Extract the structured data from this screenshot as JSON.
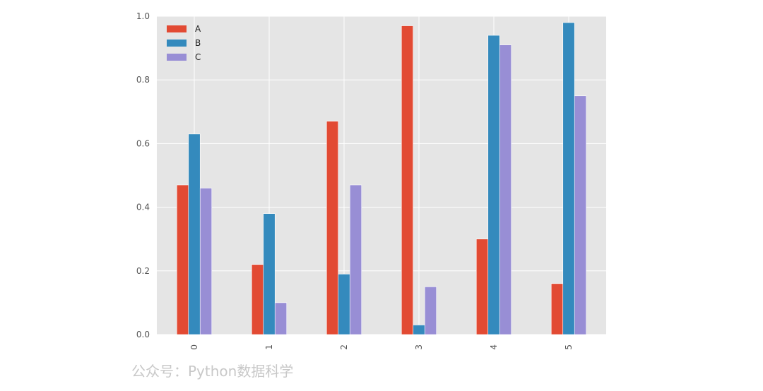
{
  "chart_data": {
    "type": "bar",
    "categories": [
      "0",
      "1",
      "2",
      "3",
      "4",
      "5"
    ],
    "series": [
      {
        "name": "A",
        "values": [
          0.47,
          0.22,
          0.67,
          0.97,
          0.3,
          0.16
        ],
        "color": "#E24A33"
      },
      {
        "name": "B",
        "values": [
          0.63,
          0.38,
          0.19,
          0.03,
          0.94,
          0.98
        ],
        "color": "#348ABD"
      },
      {
        "name": "C",
        "values": [
          0.46,
          0.1,
          0.47,
          0.15,
          0.91,
          0.75
        ],
        "color": "#988ED5"
      }
    ],
    "ylim": [
      0,
      1.0
    ],
    "yticks": [
      "0.0",
      "0.2",
      "0.4",
      "0.6",
      "0.8",
      "1.0"
    ],
    "xtick_rotation": "vertical",
    "grid": true,
    "legend": "top-left",
    "background": "#E5E5E5",
    "grid_color": "#FFFFFF"
  },
  "watermark": "公众号：Python数据科学"
}
